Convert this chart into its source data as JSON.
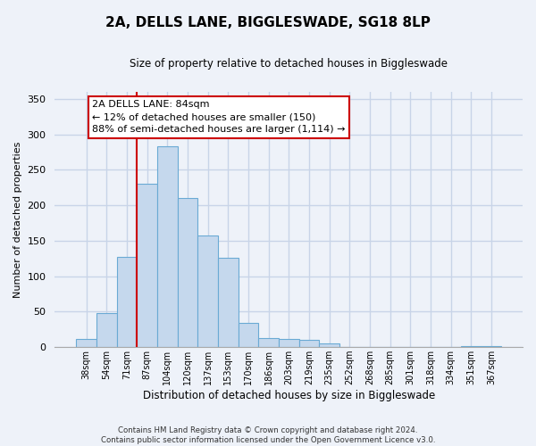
{
  "title_line1": "2A, DELLS LANE, BIGGLESWADE, SG18 8LP",
  "title_line2": "Size of property relative to detached houses in Biggleswade",
  "xlabel": "Distribution of detached houses by size in Biggleswade",
  "ylabel": "Number of detached properties",
  "bar_labels": [
    "38sqm",
    "54sqm",
    "71sqm",
    "87sqm",
    "104sqm",
    "120sqm",
    "137sqm",
    "153sqm",
    "170sqm",
    "186sqm",
    "203sqm",
    "219sqm",
    "235sqm",
    "252sqm",
    "268sqm",
    "285sqm",
    "301sqm",
    "318sqm",
    "334sqm",
    "351sqm",
    "367sqm"
  ],
  "bar_values": [
    12,
    48,
    127,
    230,
    283,
    210,
    157,
    126,
    34,
    13,
    12,
    10,
    5,
    0,
    0,
    0,
    0,
    0,
    0,
    1,
    2
  ],
  "bar_color": "#c5d8ed",
  "bar_edge_color": "#6aaad4",
  "vline_color": "#cc0000",
  "vline_x_idx": 3,
  "annotation_line1": "2A DELLS LANE: 84sqm",
  "annotation_line2": "← 12% of detached houses are smaller (150)",
  "annotation_line3": "88% of semi-detached houses are larger (1,114) →",
  "annotation_box_color": "#ffffff",
  "annotation_box_edge": "#cc0000",
  "ylim": [
    0,
    360
  ],
  "yticks": [
    0,
    50,
    100,
    150,
    200,
    250,
    300,
    350
  ],
  "background_color": "#eef2f9",
  "grid_color": "#c8d4e8",
  "footer": "Contains HM Land Registry data © Crown copyright and database right 2024.\nContains public sector information licensed under the Open Government Licence v3.0."
}
